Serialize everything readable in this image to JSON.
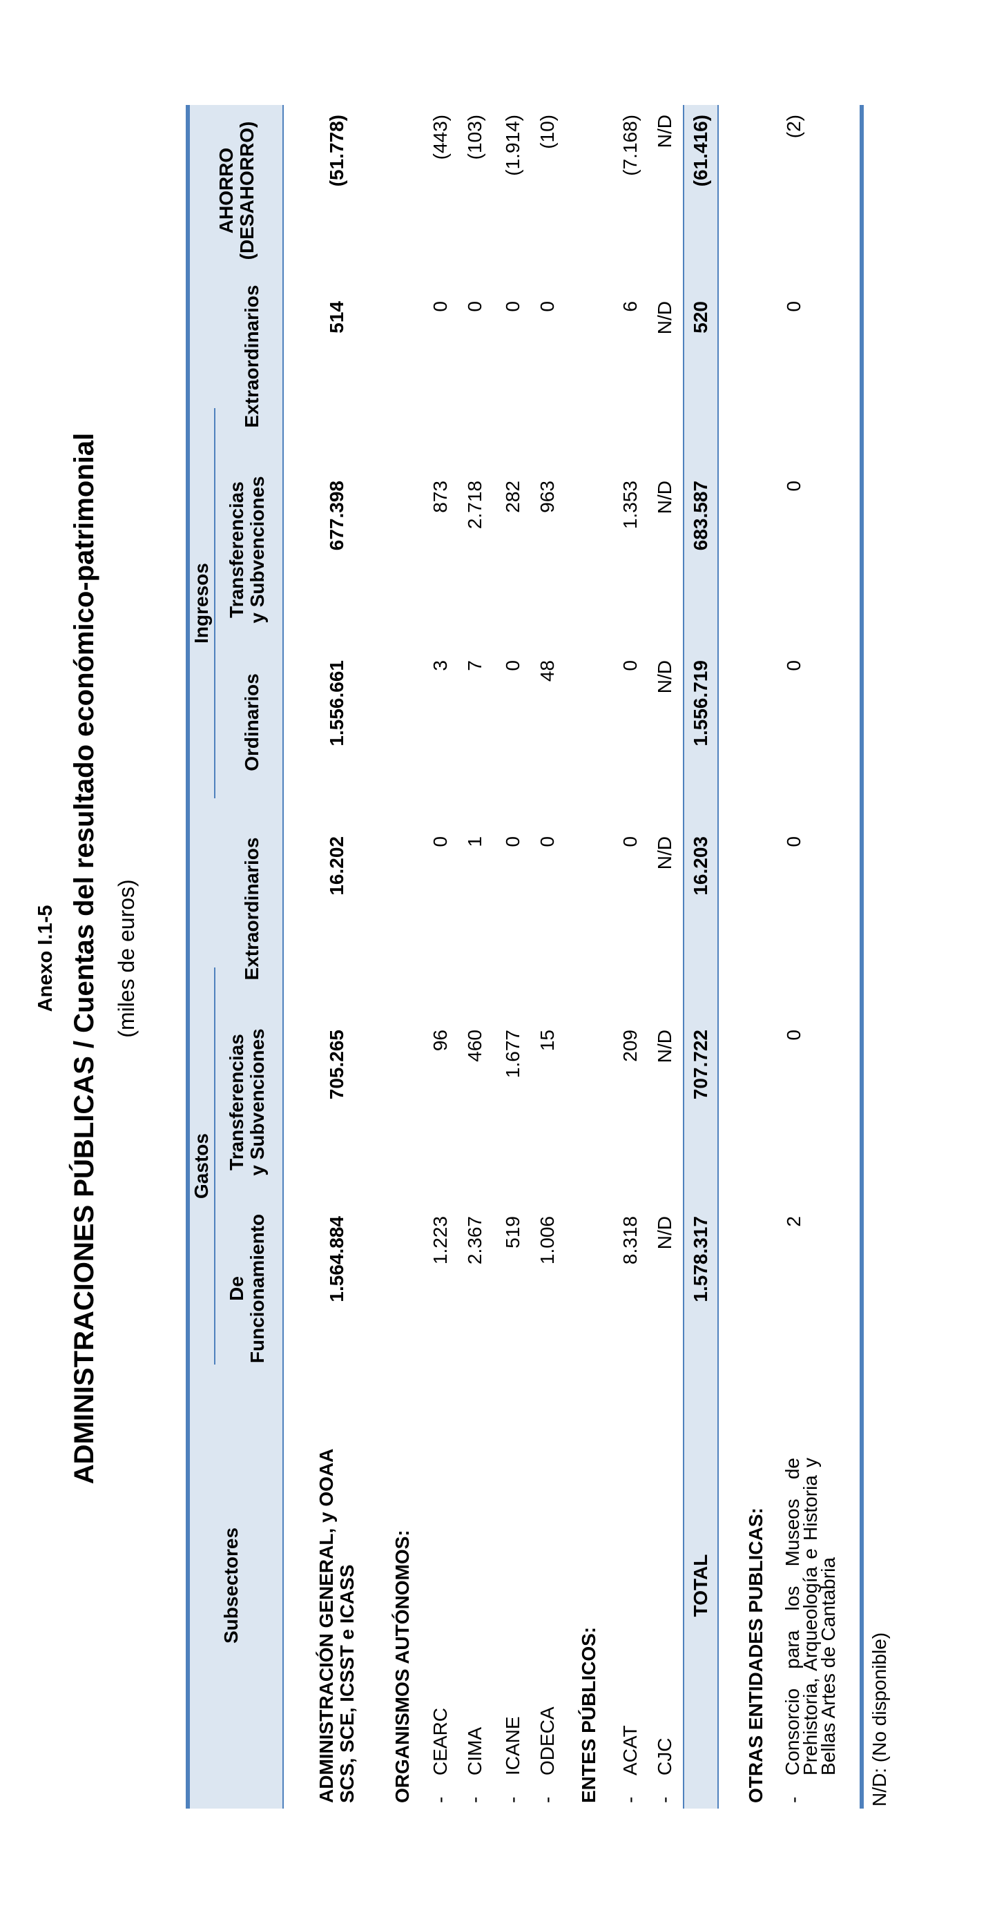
{
  "annex_title": "Anexo I.1-5",
  "title": "ADMINISTRACIONES PÚBLICAS  /  Cuentas del resultado económico-patrimonial",
  "subtitle": "(miles de euros)",
  "headers": {
    "subsectores": "Subsectores",
    "gastos": "Gastos",
    "ingresos": "Ingresos",
    "g_funcionamiento_1": "De",
    "g_funcionamiento_2": "Funcionamiento",
    "g_transferencias_1": "Transferencias",
    "g_transferencias_2": "y Subvenciones",
    "g_extraordinarios": "Extraordinarios",
    "i_ordinarios": "Ordinarios",
    "i_transferencias_1": "Transferencias",
    "i_transferencias_2": "y Subvenciones",
    "i_extraordinarios": "Extraordinarios",
    "ahorro_1": "AHORRO",
    "ahorro_2": "(DESAHORRO)"
  },
  "admin_general": {
    "label_1": "ADMINISTRACIÓN GENERAL, y OOAA",
    "label_2": "SCS, SCE, ICSST e ICASS",
    "values": [
      "1.564.884",
      "705.265",
      "16.202",
      "1.556.661",
      "677.398",
      "514",
      "(51.778)"
    ]
  },
  "organismos": {
    "title": "ORGANISMOS AUTÓNOMOS:",
    "rows": [
      {
        "dash": "-",
        "label": "CEARC",
        "values": [
          "1.223",
          "96",
          "0",
          "3",
          "873",
          "0",
          "(443)"
        ]
      },
      {
        "dash": "-",
        "label": "CIMA",
        "values": [
          "2.367",
          "460",
          "1",
          "7",
          "2.718",
          "0",
          "(103)"
        ]
      },
      {
        "dash": "-",
        "label": "ICANE",
        "values": [
          "519",
          "1.677",
          "0",
          "0",
          "282",
          "0",
          "(1.914)"
        ]
      },
      {
        "dash": "-",
        "label": "ODECA",
        "values": [
          "1.006",
          "15",
          "0",
          "48",
          "963",
          "0",
          "(10)"
        ]
      }
    ]
  },
  "entes": {
    "title": "ENTES PÚBLICOS:",
    "rows": [
      {
        "dash": "-",
        "label": "ACAT",
        "values": [
          "8.318",
          "209",
          "0",
          "0",
          "1.353",
          "6",
          "(7.168)"
        ]
      },
      {
        "dash": "-",
        "label": "CJC",
        "values": [
          "N/D",
          "N/D",
          "N/D",
          "N/D",
          "N/D",
          "N/D",
          "N/D"
        ]
      }
    ]
  },
  "total": {
    "label": "TOTAL",
    "values": [
      "1.578.317",
      "707.722",
      "16.203",
      "1.556.719",
      "683.587",
      "520",
      "(61.416)"
    ]
  },
  "otras": {
    "title": "OTRAS ENTIDADES PUBLICAS:",
    "dash": "-",
    "label": "Consorcio para los Museos de Prehistoria, Arqueología e Historia y Bellas Artes de Cantabria",
    "values": [
      "2",
      "0",
      "0",
      "0",
      "0",
      "0",
      "(2)"
    ]
  },
  "note": "N/D: (No disponible)"
}
